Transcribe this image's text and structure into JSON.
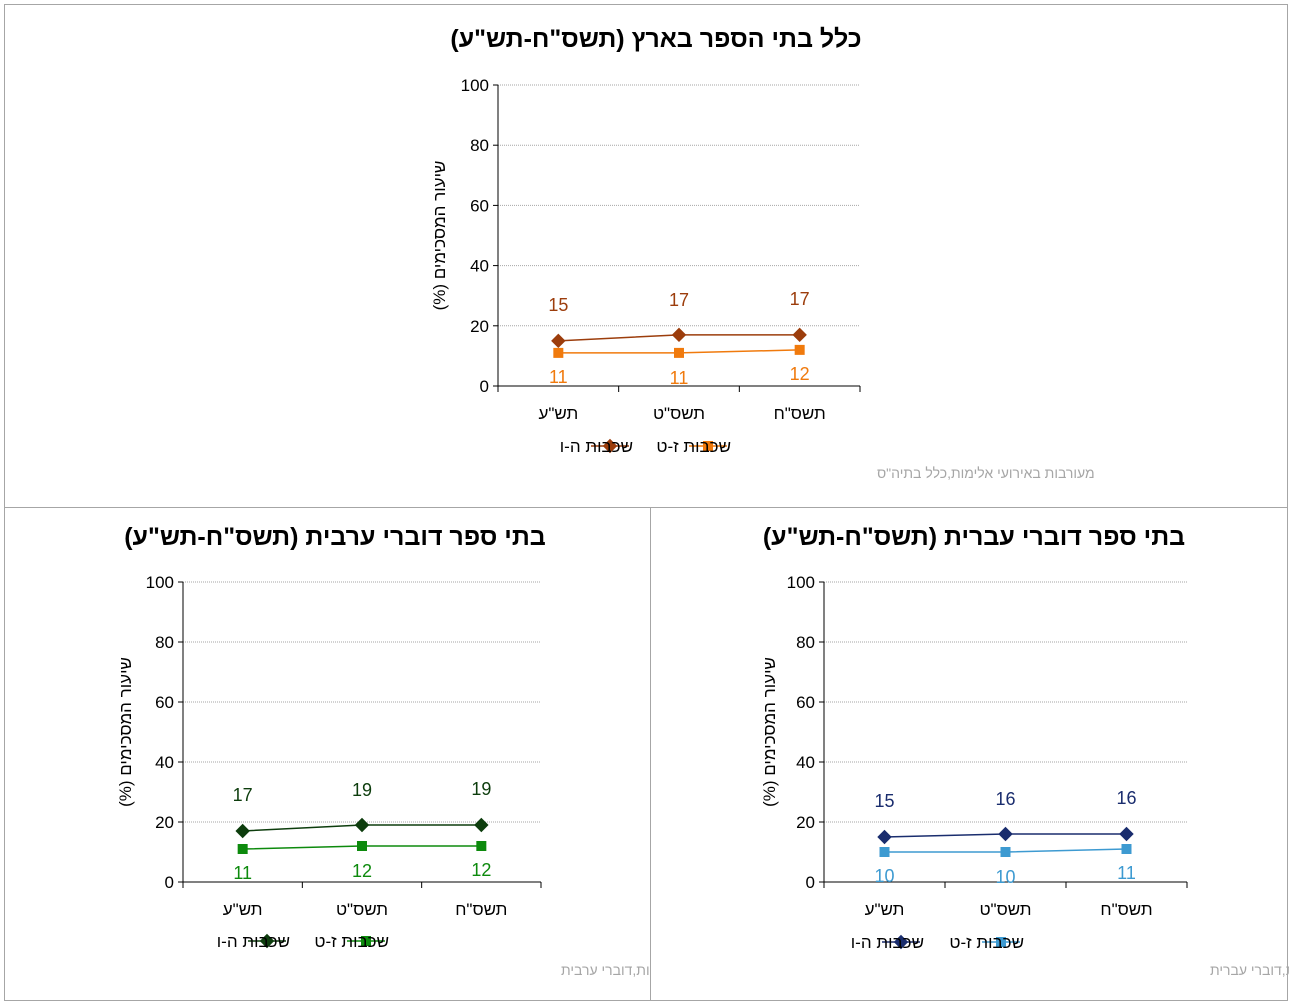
{
  "chart_data": [
    {
      "id": "top",
      "type": "line",
      "title": "כלל בתי הספר בארץ (תשס\"ח-תש\"ע)",
      "ylabel": "שיעור המסכימים (%)",
      "ylim": [
        0,
        100
      ],
      "yticks": [
        "0",
        "20",
        "40",
        "60",
        "80",
        "100"
      ],
      "categories": [
        "תשס\"ח",
        "תשס\"ט",
        "תש\"ע"
      ],
      "series": [
        {
          "name": "שכבות ה-ו",
          "values": [
            17,
            17,
            15
          ],
          "labels": [
            "17",
            "17",
            "15"
          ],
          "color": "#9c3d0c",
          "marker": "diamond"
        },
        {
          "name": "שכבות ז-ט",
          "values": [
            12,
            11,
            11
          ],
          "labels": [
            "12",
            "11",
            "11"
          ],
          "color": "#f07a0d",
          "marker": "square"
        }
      ],
      "footnote": "מעורבות באירועי אלימות,כלל בתיה\"ס",
      "grid": true,
      "legend": "bottom"
    },
    {
      "id": "left",
      "type": "line",
      "title": "בתי ספר דוברי ערבית (תשס\"ח-תש\"ע)",
      "ylabel": "שיעור המסכימים (%)",
      "ylim": [
        0,
        100
      ],
      "yticks": [
        "0",
        "20",
        "40",
        "60",
        "80",
        "100"
      ],
      "categories": [
        "תשס\"ח",
        "תשס\"ט",
        "תש\"ע"
      ],
      "series": [
        {
          "name": "שכבות ה-ו",
          "values": [
            19,
            19,
            17
          ],
          "labels": [
            "19",
            "19",
            "17"
          ],
          "color": "#0d3d0d",
          "marker": "diamond"
        },
        {
          "name": "שכבות ז-ט",
          "values": [
            12,
            12,
            11
          ],
          "labels": [
            "12",
            "12",
            "11"
          ],
          "color": "#0d8a0d",
          "marker": "square"
        }
      ],
      "footnote": "מעורבות באירועי אלימות,דוברי ערבית",
      "grid": true,
      "legend": "bottom"
    },
    {
      "id": "right",
      "type": "line",
      "title": "בתי ספר דוברי עברית (תשס\"ח-תש\"ע)",
      "ylabel": "שיעור המסכימים (%)",
      "ylim": [
        0,
        100
      ],
      "yticks": [
        "0",
        "20",
        "40",
        "60",
        "80",
        "100"
      ],
      "categories": [
        "תשס\"ח",
        "תשס\"ט",
        "תש\"ע"
      ],
      "series": [
        {
          "name": "שכבות ה-ו",
          "values": [
            16,
            16,
            15
          ],
          "labels": [
            "16",
            "16",
            "15"
          ],
          "color": "#1a2d6e",
          "marker": "diamond"
        },
        {
          "name": "שכבות ז-ט",
          "values": [
            11,
            10,
            10
          ],
          "labels": [
            "11",
            "10",
            "10"
          ],
          "color": "#3d9ad1",
          "marker": "square"
        }
      ],
      "footnote": "מעורבות באירועי אלימות,דוברי עברית",
      "grid": true,
      "legend": "bottom"
    }
  ]
}
